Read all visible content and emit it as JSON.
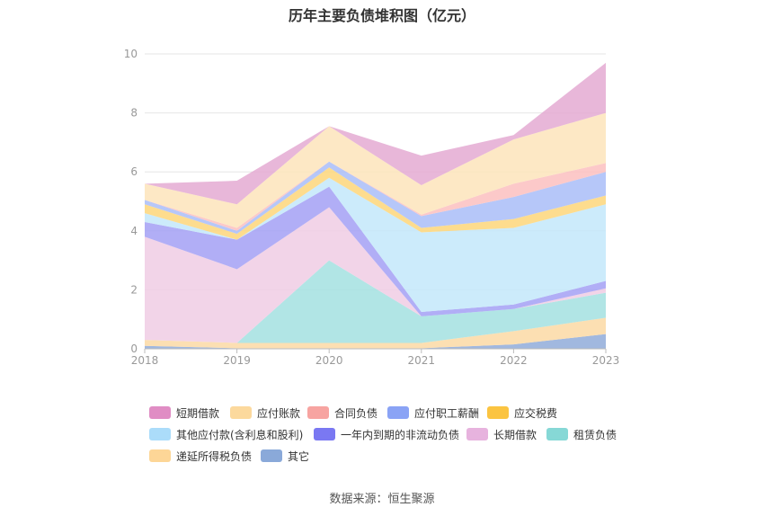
{
  "chart_data": {
    "type": "area",
    "stacked": true,
    "title": "历年主要负债堆积图（亿元）",
    "x": [
      "2018",
      "2019",
      "2020",
      "2021",
      "2022",
      "2023"
    ],
    "ylim": [
      0,
      10
    ],
    "yticks": [
      "0",
      "2",
      "4",
      "6",
      "8",
      "10"
    ],
    "grid": true,
    "legend_position": "bottom",
    "series": [
      {
        "name": "其它",
        "color": "#91acd9",
        "values": [
          0.1,
          0.02,
          0.02,
          0.02,
          0.15,
          0.5
        ]
      },
      {
        "name": "递延所得税负债",
        "color": "#fbd9a4",
        "values": [
          0.2,
          0.18,
          0.18,
          0.18,
          0.45,
          0.55
        ]
      },
      {
        "name": "租赁负债",
        "color": "#a3e0e0",
        "values": [
          0.0,
          0.0,
          2.8,
          0.9,
          0.75,
          0.85
        ]
      },
      {
        "name": "长期借款",
        "color": "#f0cde4",
        "values": [
          3.5,
          2.5,
          1.8,
          0.0,
          0.0,
          0.15
        ]
      },
      {
        "name": "一年内到期的非流动负债",
        "color": "#a3a0f5",
        "values": [
          0.5,
          1.0,
          0.7,
          0.15,
          0.15,
          0.25
        ]
      },
      {
        "name": "其他应付款(含利息和股利)",
        "color": "#c3e8fa",
        "values": [
          0.3,
          0.0,
          0.3,
          2.7,
          2.6,
          2.6
        ]
      },
      {
        "name": "应交税费",
        "color": "#fdd67a",
        "values": [
          0.3,
          0.2,
          0.35,
          0.15,
          0.3,
          0.3
        ]
      },
      {
        "name": "应付职工薪酬",
        "color": "#a9bdf8",
        "values": [
          0.15,
          0.1,
          0.2,
          0.4,
          0.75,
          0.8
        ]
      },
      {
        "name": "合同负债",
        "color": "#fbc0c0",
        "values": [
          0.0,
          0.1,
          0.0,
          0.05,
          0.45,
          0.3
        ]
      },
      {
        "name": "应付账款",
        "color": "#fde4bb",
        "values": [
          0.55,
          0.8,
          1.2,
          1.0,
          1.5,
          1.7
        ]
      },
      {
        "name": "短期借款",
        "color": "#e4aad2",
        "values": [
          0.0,
          0.8,
          0.0,
          1.0,
          0.15,
          1.7
        ]
      }
    ]
  },
  "legend": [
    {
      "label": "短期借款",
      "color": "#e08dc4"
    },
    {
      "label": "应付账款",
      "color": "#fcd99d"
    },
    {
      "label": "合同负债",
      "color": "#f7a4a1"
    },
    {
      "label": "应付职工薪酬",
      "color": "#8aa3f5"
    },
    {
      "label": "应交税费",
      "color": "#fbc441"
    },
    {
      "label": "其他应付款(含利息和股利)",
      "color": "#abdcfa"
    },
    {
      "label": "一年内到期的非流动负债",
      "color": "#7a78f2"
    },
    {
      "label": "长期借款",
      "color": "#e7b3de"
    },
    {
      "label": "租赁负债",
      "color": "#86d8d6"
    },
    {
      "label": "递延所得税负债",
      "color": "#fdd697"
    },
    {
      "label": "其它",
      "color": "#8aa9d9"
    }
  ],
  "source": "数据来源：恒生聚源"
}
